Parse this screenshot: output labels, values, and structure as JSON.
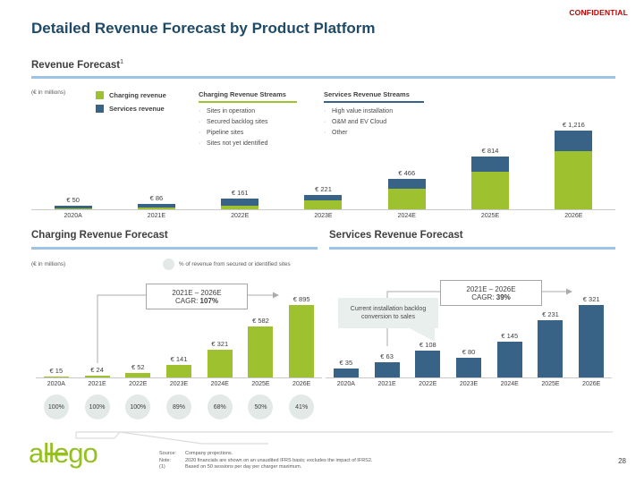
{
  "slide": {
    "confidential": "CONFIDENTIAL",
    "title": "Detailed Revenue Forecast by Product Platform",
    "page_number": "28",
    "logo_text": "allego"
  },
  "colors": {
    "charging_green": "#9ec22f",
    "services_blue": "#386387",
    "accent_rule_blue": "#9dc3e6",
    "confidential_red": "#c00000",
    "title_blue": "#1f4a68",
    "badge_gray_green": "#e3e9e6"
  },
  "revenue_forecast": {
    "title": "Revenue Forecast",
    "footnote_ref": "1",
    "unit_label": "(€ in millions)",
    "legend": [
      {
        "label": "Charging revenue"
      },
      {
        "label": "Services revenue"
      }
    ],
    "charging_streams": {
      "title": "Charging Revenue Streams",
      "items": [
        "Sites in operation",
        "Secured backlog sites",
        "Pipeline sites",
        "Sites not yet identified"
      ]
    },
    "services_streams": {
      "title": "Services Revenue Streams",
      "items": [
        "High value installation",
        "O&M and EV Cloud",
        "Other"
      ]
    }
  },
  "charging_forecast": {
    "title": "Charging Revenue Forecast",
    "unit_label": "(€ in millions)",
    "secured_legend": "% of revenue from secured or identified sites",
    "cagr": {
      "range": "2021E – 2026E",
      "label": "CAGR: ",
      "value": "107%"
    }
  },
  "services_forecast": {
    "title": "Services Revenue Forecast",
    "cagr": {
      "range": "2021E – 2026E",
      "label": "CAGR: ",
      "value": "39%"
    },
    "callout": "Current installation backlog conversion to sales"
  },
  "chart_data": [
    {
      "type": "bar",
      "stacked": true,
      "title": "Revenue Forecast (total, € in millions)",
      "categories": [
        "2020A",
        "2021E",
        "2022E",
        "2023E",
        "2024E",
        "2025E",
        "2026E"
      ],
      "series": [
        {
          "name": "Charging revenue",
          "color": "#9ec22f",
          "values": [
            15,
            24,
            52,
            141,
            321,
            582,
            895
          ]
        },
        {
          "name": "Services revenue",
          "color": "#386387",
          "values": [
            35,
            63,
            108,
            80,
            145,
            231,
            321
          ]
        }
      ],
      "totals": [
        50,
        86,
        161,
        221,
        466,
        814,
        1216
      ],
      "total_labels": [
        "€ 50",
        "€ 86",
        "€ 161",
        "€ 221",
        "€ 466",
        "€ 814",
        "€ 1,216"
      ],
      "ylim": [
        0,
        1216
      ],
      "legend_position": "top-left",
      "grid": false
    },
    {
      "type": "bar",
      "title": "Charging Revenue Forecast (€ in millions)",
      "categories": [
        "2020A",
        "2021E",
        "2022E",
        "2023E",
        "2024E",
        "2025E",
        "2026E"
      ],
      "values": [
        15,
        24,
        52,
        141,
        321,
        582,
        895
      ],
      "value_labels": [
        "€ 15",
        "€ 24",
        "€ 52",
        "€ 141",
        "€ 321",
        "€ 582",
        "€ 895"
      ],
      "color": "#9ec22f",
      "secured_pct": [
        "100%",
        "100%",
        "100%",
        "89%",
        "68%",
        "50%",
        "41%"
      ],
      "cagr_2021_2026": "107%",
      "ylim": [
        0,
        895
      ],
      "grid": false
    },
    {
      "type": "bar",
      "title": "Services Revenue Forecast (€ in millions)",
      "categories": [
        "2020A",
        "2021E",
        "2022E",
        "2023E",
        "2024E",
        "2025E",
        "2026E"
      ],
      "values": [
        35,
        63,
        108,
        80,
        145,
        231,
        321
      ],
      "value_labels": [
        "€ 35",
        "€ 63",
        "€ 108",
        "€ 80",
        "€ 145",
        "€ 231",
        "€ 321"
      ],
      "color": "#386387",
      "cagr_2021_2026": "39%",
      "annotation": "Current installation backlog conversion to sales",
      "ylim": [
        0,
        321
      ],
      "grid": false
    }
  ],
  "footer": {
    "rows": [
      {
        "label": "Source:",
        "text": "Company projections."
      },
      {
        "label": "Note:",
        "text": "2020 financials are shown on an unaudited IFRS basis; excludes the impact of IFRS2."
      },
      {
        "label": "(1)",
        "text": "Based on 50 sessions per day per charger maximum."
      }
    ]
  }
}
